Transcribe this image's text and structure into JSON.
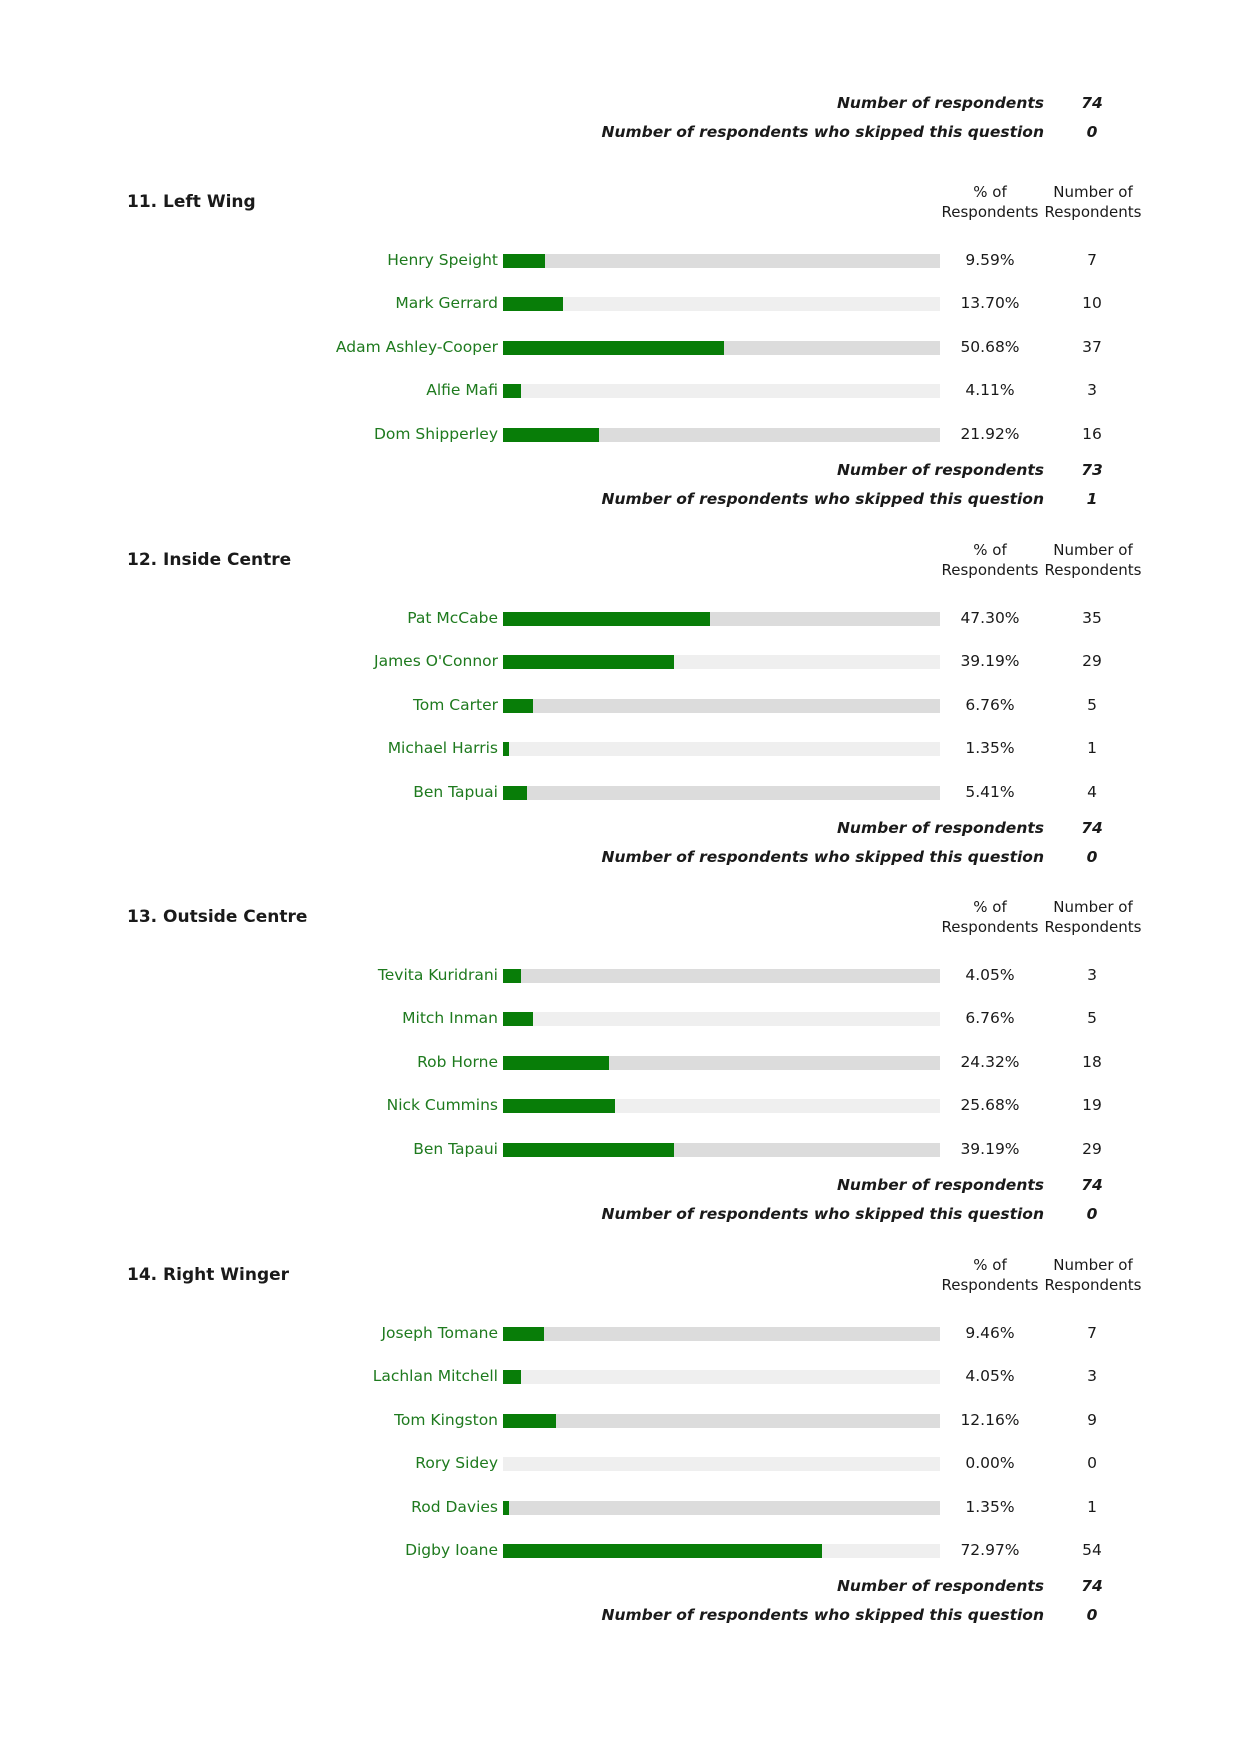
{
  "top_summary": {
    "respondents_label": "Number of respondents",
    "respondents_value": "74",
    "skipped_label": "Number of respondents who skipped this question",
    "skipped_value": "0"
  },
  "column_headers": {
    "pct_line1": "% of",
    "pct_line2": "Respondents",
    "num_line1": "Number of",
    "num_line2": "Respondents"
  },
  "colors": {
    "bar_fill": "#087d08",
    "track_dark": "#dcdcdc",
    "track_light": "#efefef",
    "label_green": "#1e7a1e"
  },
  "questions": [
    {
      "title": "11. Left Wing",
      "options": [
        {
          "label": "Henry Speight",
          "pct_text": "9.59%",
          "pct": 9.59,
          "count": "7"
        },
        {
          "label": "Mark Gerrard",
          "pct_text": "13.70%",
          "pct": 13.7,
          "count": "10"
        },
        {
          "label": "Adam Ashley-Cooper",
          "pct_text": "50.68%",
          "pct": 50.68,
          "count": "37"
        },
        {
          "label": "Alfie Mafi",
          "pct_text": "4.11%",
          "pct": 4.11,
          "count": "3"
        },
        {
          "label": "Dom Shipperley",
          "pct_text": "21.92%",
          "pct": 21.92,
          "count": "16"
        }
      ],
      "respondents_label": "Number of respondents",
      "respondents": "73",
      "skipped_label": "Number of respondents who skipped this question",
      "skipped": "1"
    },
    {
      "title": "12. Inside Centre",
      "options": [
        {
          "label": "Pat McCabe",
          "pct_text": "47.30%",
          "pct": 47.3,
          "count": "35"
        },
        {
          "label": "James O'Connor",
          "pct_text": "39.19%",
          "pct": 39.19,
          "count": "29"
        },
        {
          "label": "Tom Carter",
          "pct_text": "6.76%",
          "pct": 6.76,
          "count": "5"
        },
        {
          "label": "Michael Harris",
          "pct_text": "1.35%",
          "pct": 1.35,
          "count": "1"
        },
        {
          "label": "Ben Tapuai",
          "pct_text": "5.41%",
          "pct": 5.41,
          "count": "4"
        }
      ],
      "respondents_label": "Number of respondents",
      "respondents": "74",
      "skipped_label": "Number of respondents who skipped this question",
      "skipped": "0"
    },
    {
      "title": "13. Outside Centre",
      "options": [
        {
          "label": "Tevita Kuridrani",
          "pct_text": "4.05%",
          "pct": 4.05,
          "count": "3"
        },
        {
          "label": "Mitch Inman",
          "pct_text": "6.76%",
          "pct": 6.76,
          "count": "5"
        },
        {
          "label": "Rob Horne",
          "pct_text": "24.32%",
          "pct": 24.32,
          "count": "18"
        },
        {
          "label": "Nick Cummins",
          "pct_text": "25.68%",
          "pct": 25.68,
          "count": "19"
        },
        {
          "label": "Ben Tapaui",
          "pct_text": "39.19%",
          "pct": 39.19,
          "count": "29"
        }
      ],
      "respondents_label": "Number of respondents",
      "respondents": "74",
      "skipped_label": "Number of respondents who skipped this question",
      "skipped": "0"
    },
    {
      "title": "14. Right Winger",
      "options": [
        {
          "label": "Joseph Tomane",
          "pct_text": "9.46%",
          "pct": 9.46,
          "count": "7"
        },
        {
          "label": "Lachlan Mitchell",
          "pct_text": "4.05%",
          "pct": 4.05,
          "count": "3"
        },
        {
          "label": "Tom Kingston",
          "pct_text": "12.16%",
          "pct": 12.16,
          "count": "9"
        },
        {
          "label": "Rory Sidey",
          "pct_text": "0.00%",
          "pct": 0,
          "count": "0"
        },
        {
          "label": "Rod Davies",
          "pct_text": "1.35%",
          "pct": 1.35,
          "count": "1"
        },
        {
          "label": "Digby Ioane",
          "pct_text": "72.97%",
          "pct": 72.97,
          "count": "54"
        }
      ],
      "respondents_label": "Number of respondents",
      "respondents": "74",
      "skipped_label": "Number of respondents who skipped this question",
      "skipped": "0"
    }
  ]
}
